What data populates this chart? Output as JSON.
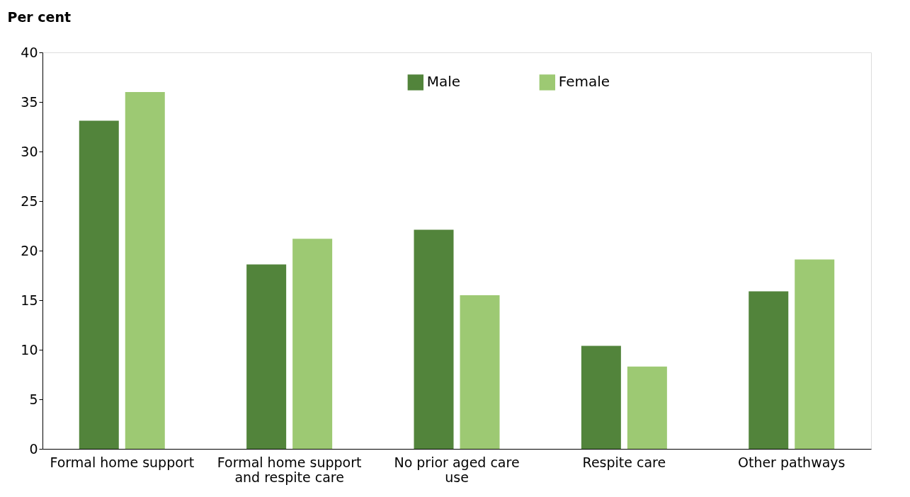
{
  "chart_data": {
    "type": "bar",
    "ylabel": "Per cent",
    "categories": [
      "Formal home support",
      "Formal home support and respite care",
      "No prior aged care use",
      "Respite care",
      "Other pathways"
    ],
    "series": [
      {
        "name": "Male",
        "color": "#52843b",
        "values": [
          33.1,
          18.6,
          22.1,
          10.4,
          15.9
        ]
      },
      {
        "name": "Female",
        "color": "#9dc973",
        "values": [
          36.0,
          21.2,
          15.5,
          8.3,
          19.1
        ]
      }
    ],
    "ylim": [
      0,
      40
    ],
    "yticks": [
      0,
      5,
      10,
      15,
      20,
      25,
      30,
      35,
      40
    ],
    "grid": false,
    "legend": "top"
  }
}
